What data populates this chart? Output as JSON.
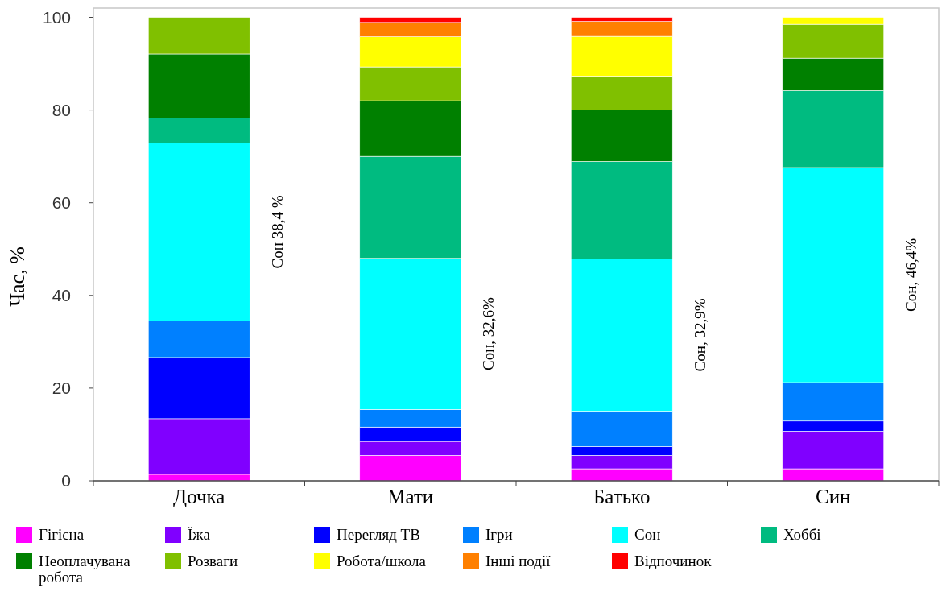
{
  "chart_data": {
    "type": "bar",
    "stacked": true,
    "ylabel": "Час, %",
    "categories": [
      "Дочка",
      "Мати",
      "Батько",
      "Син"
    ],
    "ylim": [
      0,
      102
    ],
    "yticks": [
      0,
      20,
      40,
      60,
      80,
      100
    ],
    "grid": false,
    "legend": "bottom",
    "series": [
      {
        "name": "Гігієна",
        "color": "#ff00ff",
        "values": [
          1.4,
          5.5,
          2.6,
          2.6
        ]
      },
      {
        "name": "Їжа",
        "color": "#8000ff",
        "values": [
          12.0,
          3.0,
          2.9,
          8.1
        ]
      },
      {
        "name": "Перегляд ТВ",
        "color": "#0000ff",
        "values": [
          13.2,
          3.1,
          1.9,
          2.2
        ]
      },
      {
        "name": "Ігри",
        "color": "#0080ff",
        "values": [
          7.9,
          3.8,
          7.6,
          8.3
        ]
      },
      {
        "name": "Сон",
        "color": "#00ffff",
        "values": [
          38.4,
          32.6,
          32.9,
          46.4
        ]
      },
      {
        "name": "Хоббі",
        "color": "#00bb80",
        "values": [
          5.4,
          22.0,
          21.0,
          16.6
        ]
      },
      {
        "name": "Неоплачувана робота",
        "color": "#008000",
        "values": [
          13.8,
          12.0,
          11.1,
          7.0
        ]
      },
      {
        "name": "Розваги",
        "color": "#80c000",
        "values": [
          7.9,
          7.3,
          7.3,
          7.3
        ]
      },
      {
        "name": "Робота/школа",
        "color": "#ffff00",
        "values": [
          0,
          6.5,
          8.6,
          1.5
        ]
      },
      {
        "name": "Інші події",
        "color": "#ff8000",
        "values": [
          0,
          3.1,
          3.2,
          0
        ]
      },
      {
        "name": "Відпочинок",
        "color": "#ff0000",
        "values": [
          0,
          1.1,
          0.9,
          0
        ]
      }
    ],
    "annotations": [
      "Сон 38,4 %",
      "Сон, 32,6%",
      "Сон, 32,9%",
      "Сон, 46,4%"
    ]
  }
}
